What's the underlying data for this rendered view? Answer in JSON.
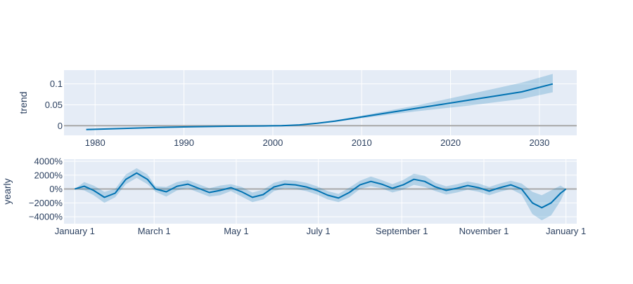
{
  "chart_data": [
    {
      "type": "line",
      "title": "",
      "xlabel": "",
      "ylabel": "trend",
      "x_ticks": [
        "1980",
        "1990",
        "2000",
        "2010",
        "2020",
        "2030"
      ],
      "y_ticks": [
        "0",
        "0.05",
        "0.1"
      ],
      "xlim": [
        1976.5,
        2034.2
      ],
      "ylim": [
        -0.023,
        0.133
      ],
      "zero_line": true,
      "grid": true,
      "series": [
        {
          "x": [
            1979.0,
            1983.0,
            1987.0,
            1991.0,
            1995.0,
            1999.0,
            2001.0,
            2003.0,
            2005.0,
            2007.0,
            2010.0,
            2013.0,
            2016.0,
            2019.0,
            2022.0,
            2025.0,
            2028.0,
            2031.5
          ],
          "y": [
            -0.009,
            -0.0065,
            -0.004,
            -0.0025,
            -0.0012,
            -0.0005,
            0.0,
            0.002,
            0.006,
            0.011,
            0.021,
            0.031,
            0.041,
            0.051,
            0.061,
            0.071,
            0.081,
            0.1
          ],
          "lower": [
            -0.01,
            -0.0075,
            -0.0048,
            -0.003,
            -0.0015,
            -0.0006,
            -0.0002,
            0.0015,
            0.005,
            0.009,
            0.018,
            0.026,
            0.034,
            0.041,
            0.048,
            0.056,
            0.064,
            0.08
          ],
          "upper": [
            -0.008,
            -0.0055,
            -0.0032,
            -0.002,
            -0.0009,
            -0.0004,
            0.0002,
            0.0025,
            0.007,
            0.013,
            0.024,
            0.036,
            0.048,
            0.061,
            0.075,
            0.089,
            0.103,
            0.124
          ]
        }
      ]
    },
    {
      "type": "line",
      "title": "",
      "xlabel": "",
      "ylabel": "yearly",
      "x_ticks": [
        "January  1",
        "March  1",
        "May  1",
        "July  1",
        "September  1",
        "November  1",
        "January  1"
      ],
      "y_ticks": [
        "4000%",
        "2000%",
        "0%",
        "−2000%",
        "−4000%"
      ],
      "xlim": [
        -8,
        373
      ],
      "ylim": [
        -5000,
        4300
      ],
      "zero_line": true,
      "grid": true,
      "series": [
        {
          "x": [
            0,
            7,
            14,
            22,
            30,
            38,
            46,
            54,
            60,
            68,
            76,
            84,
            92,
            100,
            108,
            116,
            124,
            132,
            140,
            148,
            156,
            164,
            172,
            180,
            188,
            196,
            204,
            212,
            220,
            228,
            236,
            244,
            252,
            260,
            268,
            276,
            284,
            292,
            300,
            308,
            316,
            324,
            332,
            340,
            347,
            354,
            361,
            365
          ],
          "y": [
            0,
            400,
            -200,
            -1200,
            -600,
            1400,
            2300,
            1400,
            0,
            -400,
            400,
            700,
            100,
            -500,
            -200,
            200,
            -400,
            -1200,
            -800,
            300,
            700,
            600,
            300,
            -200,
            -900,
            -1300,
            -500,
            600,
            1100,
            700,
            100,
            600,
            1400,
            1100,
            300,
            -200,
            100,
            500,
            200,
            -300,
            200,
            600,
            0,
            -2000,
            -2700,
            -2000,
            -600,
            0
          ],
          "lower": [
            0,
            -200,
            -900,
            -2000,
            -1200,
            700,
            1600,
            700,
            -400,
            -1100,
            -200,
            100,
            -500,
            -1100,
            -900,
            -300,
            -1100,
            -1900,
            -1500,
            -300,
            100,
            0,
            -300,
            -800,
            -1500,
            -1900,
            -1200,
            0,
            400,
            100,
            -500,
            -100,
            600,
            300,
            -300,
            -800,
            -500,
            -100,
            -400,
            -900,
            -400,
            0,
            -800,
            -3600,
            -4500,
            -3800,
            -1700,
            0
          ],
          "upper": [
            0,
            1000,
            500,
            -400,
            0,
            2100,
            3000,
            2100,
            400,
            300,
            1000,
            1300,
            700,
            100,
            500,
            700,
            300,
            -500,
            -100,
            900,
            1300,
            1200,
            900,
            400,
            -300,
            -700,
            200,
            1200,
            1800,
            1300,
            700,
            1300,
            2200,
            1900,
            900,
            400,
            700,
            1100,
            800,
            300,
            800,
            1200,
            800,
            -400,
            -900,
            -200,
            500,
            0
          ]
        }
      ]
    }
  ]
}
